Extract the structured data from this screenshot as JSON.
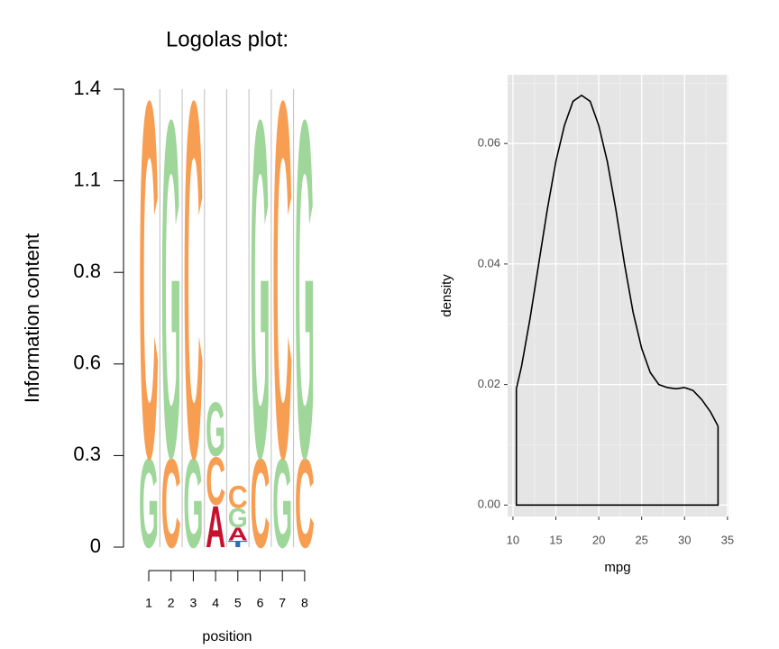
{
  "chart_data": [
    {
      "type": "logo",
      "title": "Logolas plot:",
      "x_label": "position",
      "y_label": "Information content",
      "categories": [
        "1",
        "2",
        "3",
        "4",
        "5",
        "6",
        "7",
        "8"
      ],
      "stacks": [
        {
          "letters": [
            "G",
            "C"
          ],
          "values": [
            0.28,
            1.12
          ]
        },
        {
          "letters": [
            "C",
            "G"
          ],
          "values": [
            0.28,
            1.06
          ]
        },
        {
          "letters": [
            "G",
            "C"
          ],
          "values": [
            0.28,
            1.12
          ]
        },
        {
          "letters": [
            "A",
            "C",
            "G"
          ],
          "values": [
            0.13,
            0.15,
            0.17
          ]
        },
        {
          "letters": [
            "T",
            "A",
            "G",
            "C"
          ],
          "values": [
            0.02,
            0.04,
            0.06,
            0.07
          ]
        },
        {
          "letters": [
            "C",
            "G"
          ],
          "values": [
            0.28,
            1.06
          ]
        },
        {
          "letters": [
            "G",
            "C"
          ],
          "values": [
            0.28,
            1.12
          ]
        },
        {
          "letters": [
            "C",
            "G"
          ],
          "values": [
            0.28,
            1.06
          ]
        }
      ],
      "letter_colors": {
        "A": "#c8102e",
        "C": "#f89e52",
        "G": "#9fd699",
        "T": "#2f6fb3"
      },
      "ylim": [
        0,
        1.4
      ],
      "yticks": [
        0,
        {
          "value": 0.28,
          "label": "0.3"
        },
        {
          "value": 0.56,
          "label": "0.6"
        },
        {
          "value": 0.84,
          "label": "0.8"
        },
        {
          "value": 1.12,
          "label": "1.1"
        },
        1.4
      ],
      "grid": true
    },
    {
      "type": "density",
      "x_label": "mpg",
      "y_label": "density",
      "x": [
        10.4,
        11,
        12,
        13,
        14,
        15,
        16,
        17,
        18,
        19,
        20,
        21,
        22,
        23,
        24,
        25,
        26,
        27,
        28,
        29,
        30,
        31,
        32,
        33,
        33.9
      ],
      "values": [
        0.0193,
        0.023,
        0.031,
        0.04,
        0.049,
        0.057,
        0.063,
        0.067,
        0.068,
        0.067,
        0.063,
        0.057,
        0.049,
        0.04,
        0.032,
        0.026,
        0.022,
        0.02,
        0.0195,
        0.0193,
        0.0195,
        0.019,
        0.0175,
        0.0155,
        0.0131
      ],
      "color": "#000000",
      "panel_color": "#e5e5e5",
      "xlim": [
        9.38,
        35.12
      ],
      "ylim": [
        -0.0019,
        0.0714
      ],
      "xticks": [
        10,
        15,
        20,
        25,
        30,
        35
      ],
      "yticks": [
        {
          "value": 0,
          "label": "0.00"
        },
        0.02,
        0.04,
        0.06
      ],
      "grid": true
    }
  ]
}
